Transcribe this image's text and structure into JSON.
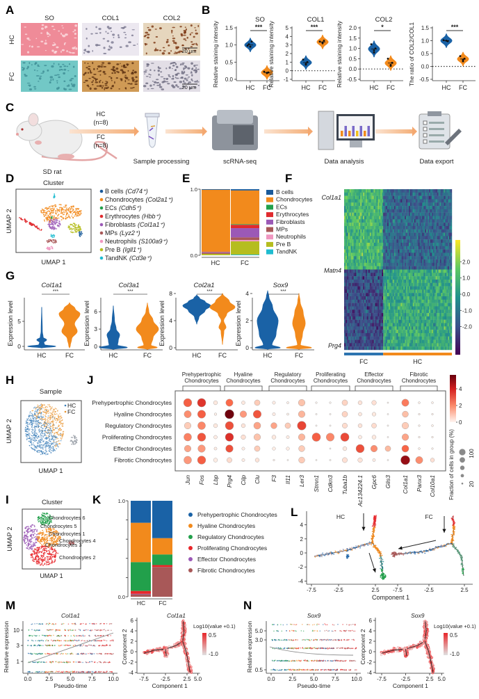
{
  "A": {
    "label": "A",
    "columns": [
      "SO",
      "COL1",
      "COL2"
    ],
    "rows": [
      "HC",
      "FC"
    ],
    "scale_bar": "20 µm"
  },
  "B": {
    "label": "B",
    "groups": [
      "HC",
      "FC"
    ],
    "colors": {
      "HC": "#1a62a6",
      "FC": "#f28a1c"
    },
    "plots": [
      {
        "title": "SO",
        "ylabel": "Relative staining intensity",
        "yticks": [
          "0.0",
          "0.5",
          "1.0",
          "1.5"
        ],
        "ylim": [
          0,
          1.5
        ],
        "sig": "***",
        "HC": [
          0.95,
          1.1,
          0.98,
          0.95,
          1.02
        ],
        "FC": [
          0.18,
          0.2,
          0.22,
          0.19
        ]
      },
      {
        "title": "COL1",
        "ylabel": "Relative staining intensity",
        "yticks": [
          "-1",
          "0",
          "1",
          "2",
          "3",
          "4",
          "5"
        ],
        "ylim": [
          -1,
          5
        ],
        "sig": "***",
        "HC": [
          0.8,
          1.0,
          1.3,
          0.7
        ],
        "FC": [
          3.3,
          3.5,
          3.4,
          3.2
        ]
      },
      {
        "title": "COL2",
        "ylabel": "Relative staining intensity",
        "yticks": [
          "-0.5",
          "0.0",
          "0.5",
          "1.0",
          "1.5",
          "2.0"
        ],
        "ylim": [
          -0.5,
          2.0
        ],
        "sig": "*",
        "HC": [
          0.8,
          1.0,
          1.2,
          0.9
        ],
        "FC": [
          0.2,
          0.3,
          0.5,
          0.15
        ]
      },
      {
        "title": "",
        "ylabel": "The ratio of COL2/COL1",
        "yticks": [
          "-0.5",
          "0.0",
          "0.5",
          "1.0",
          "1.5"
        ],
        "ylim": [
          -0.5,
          1.5
        ],
        "sig": "***",
        "HC": [
          1.0,
          0.98,
          1.02
        ],
        "FC": [
          0.2,
          0.3,
          0.4,
          0.25
        ]
      }
    ]
  },
  "C": {
    "label": "C",
    "subject": "SD rat",
    "groups": [
      {
        "name": "HC",
        "n": "(n=8)"
      },
      {
        "name": "FC",
        "n": "(n=8)"
      }
    ],
    "steps": [
      "Sample processing",
      "scRNA-seq",
      "Data analysis",
      "Data export"
    ]
  },
  "D": {
    "label": "D",
    "title": "Cluster",
    "xlabel": "UMAP 1",
    "ylabel": "UMAP 2",
    "legend": [
      {
        "name": "B cells",
        "marker": "(Cd74⁺)",
        "color": "#1a5a9a"
      },
      {
        "name": "Chondrocytes",
        "marker": "(Col2a1⁺)",
        "color": "#f28a1c"
      },
      {
        "name": "ECs",
        "marker": "(Cdh5⁺)",
        "color": "#22a04b"
      },
      {
        "name": "Erythrocytes",
        "marker": "(Hbb⁺)",
        "color": "#e02a2e"
      },
      {
        "name": "Fibroblasts",
        "marker": "(Col1a1⁺)",
        "color": "#9b59b6"
      },
      {
        "name": "MPs",
        "marker": "(Lyz2⁺)",
        "color": "#a85858"
      },
      {
        "name": "Neutrophils",
        "marker": "(S100a9⁺)",
        "color": "#f097c0"
      },
      {
        "name": "Pre B",
        "marker": "(Igll1⁺)",
        "color": "#b5bd1f"
      },
      {
        "name": "TandNK",
        "marker": "(Cd3e⁺)",
        "color": "#1fbcd0"
      }
    ]
  },
  "E": {
    "label": "E",
    "categories": [
      "HC",
      "FC"
    ],
    "yticks": [
      "0.0",
      "1.0"
    ],
    "legend": [
      "B cells",
      "Chondrocytes",
      "ECs",
      "Erythrocytes",
      "Fibroblasts",
      "MPs",
      "Neutrophils",
      "Pre B",
      "TandNK"
    ],
    "fractions": {
      "HC": [
        0.01,
        0.94,
        0.0,
        0.0,
        0.01,
        0.02,
        0.0,
        0.02,
        0.0
      ],
      "FC": [
        0.02,
        0.51,
        0.01,
        0.05,
        0.14,
        0.04,
        0.02,
        0.2,
        0.01
      ]
    }
  },
  "F": {
    "label": "F",
    "genes": [
      "Col1a1",
      "Matn4",
      "Prg4"
    ],
    "groups": [
      "FC",
      "HC"
    ],
    "colorbar": [
      "2.0",
      "1.0",
      "0.0",
      "-1.0",
      "-2.0"
    ]
  },
  "G": {
    "label": "G",
    "ylabel": "Expression level",
    "groups": [
      "HC",
      "FC"
    ],
    "sig": "***",
    "plots": [
      {
        "gene": "Col1a1",
        "yticks": [
          "0",
          "5"
        ],
        "HC": [
          [
            -0.3,
            0
          ],
          [
            0,
            1
          ],
          [
            0.3,
            0.2
          ],
          [
            0.8,
            0.15
          ],
          [
            1.3,
            0.35
          ],
          [
            1.8,
            0.1
          ],
          [
            3,
            0.04
          ],
          [
            7.8,
            0
          ]
        ],
        "FC": [
          [
            -0.3,
            0
          ],
          [
            0.1,
            0.05
          ],
          [
            1.5,
            0.15
          ],
          [
            3,
            0.55
          ],
          [
            4.5,
            0.35
          ],
          [
            6.5,
            0.75
          ],
          [
            7.5,
            0.4
          ],
          [
            8.7,
            0
          ]
        ]
      },
      {
        "gene": "Col3a1",
        "yticks": [
          "0",
          "3",
          "6"
        ],
        "HC": [
          [
            -0.5,
            0
          ],
          [
            -0.2,
            1
          ],
          [
            0.2,
            0.3
          ],
          [
            1,
            0.35
          ],
          [
            2,
            0.45
          ],
          [
            3,
            0.2
          ],
          [
            4.5,
            0.08
          ],
          [
            7,
            0
          ]
        ],
        "FC": [
          [
            -0.5,
            0
          ],
          [
            -0.2,
            0.7
          ],
          [
            0.2,
            0.25
          ],
          [
            1.5,
            0.4
          ],
          [
            3,
            0.8
          ],
          [
            4.5,
            0.4
          ],
          [
            6,
            0.1
          ],
          [
            7.5,
            0
          ]
        ]
      },
      {
        "gene": "Col2a1",
        "yticks": [
          "0",
          "4",
          "8"
        ],
        "HC": [
          [
            3.5,
            0
          ],
          [
            4.5,
            0.15
          ],
          [
            5.5,
            0.6
          ],
          [
            6.2,
            1
          ],
          [
            6.8,
            0.6
          ],
          [
            7.3,
            0.2
          ],
          [
            7.8,
            0
          ]
        ],
        "FC": [
          [
            0.5,
            0
          ],
          [
            2.5,
            0.1
          ],
          [
            3,
            0.25
          ],
          [
            4,
            0.08
          ],
          [
            5,
            0.3
          ],
          [
            6,
            0.9
          ],
          [
            6.8,
            0.5
          ],
          [
            8,
            0
          ]
        ]
      },
      {
        "gene": "Sox9",
        "yticks": [
          "0",
          "2",
          "4"
        ],
        "HC": [
          [
            -0.1,
            0
          ],
          [
            0,
            0.9
          ],
          [
            0.2,
            0.3
          ],
          [
            1,
            0.6
          ],
          [
            2,
            0.75
          ],
          [
            3,
            0.35
          ],
          [
            3.8,
            0.08
          ],
          [
            4.2,
            0
          ]
        ],
        "FC": [
          [
            -0.1,
            0
          ],
          [
            0,
            0.9
          ],
          [
            0.2,
            0.1
          ],
          [
            1,
            0.25
          ],
          [
            1.8,
            0.45
          ],
          [
            2.6,
            0.3
          ],
          [
            3.4,
            0.08
          ],
          [
            4,
            0
          ]
        ]
      }
    ]
  },
  "H": {
    "label": "H",
    "title": "Sample",
    "legend": [
      "HC",
      "FC"
    ],
    "xlabel": "UMAP 1",
    "ylabel": "UMAP 2"
  },
  "I": {
    "label": "I",
    "title": "Cluster",
    "xlabel": "UMAP 1",
    "ylabel": "UMAP 2",
    "clusters": [
      "Chondrocytes 6",
      "Chondrocytes 5",
      "Chondrocytes 1",
      "Chondrocytes 4",
      "Chondrocytes 3",
      "Chondrocytes 2"
    ]
  },
  "J": {
    "label": "J",
    "groups": [
      {
        "line1": "Prehypertrophic",
        "line2": "Chondrocytes"
      },
      {
        "line1": "Hyaline",
        "line2": "Chondrocytes"
      },
      {
        "line1": "Regulatory",
        "line2": "Chondrocytes"
      },
      {
        "line1": "Proliferating",
        "line2": "Chondrocytes"
      },
      {
        "line1": "Effector",
        "line2": "Chondrocytes"
      },
      {
        "line1": "Fibrotic",
        "line2": "Chondrocytes"
      }
    ],
    "rows": [
      "Prehypertrophic Chondrocytes",
      "Hyaline Chondrocytes",
      "Regulatory Chondrocytes",
      "Proliferating Chondrocytes",
      "Effector Chondrocytes",
      "Fibrotic Chondrocytes"
    ],
    "genes": [
      "Jun",
      "Fos",
      "Lbp",
      "Prg4",
      "Cilp",
      "Clu",
      "F3",
      "Il11",
      "Ler3",
      "Stmn1",
      "Cdkn3",
      "Tuba1b",
      "Ac134224.1",
      "Gpc6",
      "Glis3",
      "Col1a1",
      "Panx3",
      "Col10a1"
    ],
    "expr": [
      [
        3.0,
        3.8,
        0.3,
        2.8,
        0.3,
        1.0,
        0.2,
        0.1,
        1.2,
        0,
        0,
        0.8,
        0.4,
        0.5,
        0,
        2.5,
        0.1,
        0.1
      ],
      [
        2.2,
        3.0,
        0.1,
        5.5,
        2.0,
        3.2,
        0.2,
        0.1,
        1.5,
        0,
        0,
        0.8,
        0.3,
        0.3,
        0,
        1.3,
        0.1,
        0.1
      ],
      [
        1.0,
        2.3,
        0.3,
        3.3,
        0.4,
        1.8,
        1.8,
        1.0,
        3.5,
        0,
        0,
        0.6,
        0.4,
        0.6,
        0,
        1.0,
        0.1,
        0.1
      ],
      [
        2.4,
        3.2,
        0.2,
        3.9,
        0.5,
        1.2,
        0.3,
        0.2,
        1.5,
        3.0,
        2.3,
        3.4,
        0.2,
        0.3,
        0,
        1.8,
        0.1,
        0.1
      ],
      [
        1.8,
        2.0,
        0.2,
        3.3,
        0.2,
        1.0,
        0.2,
        0.2,
        1.0,
        0,
        0,
        0.3,
        3.3,
        2.2,
        1.4,
        2.9,
        0.1,
        0.1
      ],
      [
        2.0,
        3.0,
        0.2,
        0.6,
        0.2,
        0.4,
        0.1,
        0,
        1.0,
        0,
        0,
        0.5,
        0.4,
        0.2,
        0,
        5.0,
        2.2,
        0.5
      ]
    ],
    "frac": [
      [
        70,
        72,
        30,
        60,
        25,
        45,
        20,
        12,
        55,
        8,
        8,
        45,
        30,
        35,
        5,
        60,
        10,
        10
      ],
      [
        60,
        68,
        15,
        78,
        55,
        68,
        20,
        12,
        55,
        6,
        6,
        45,
        25,
        28,
        5,
        50,
        8,
        8
      ],
      [
        55,
        65,
        30,
        70,
        30,
        58,
        50,
        45,
        75,
        6,
        6,
        40,
        30,
        38,
        6,
        55,
        8,
        10
      ],
      [
        65,
        70,
        25,
        70,
        35,
        55,
        30,
        20,
        55,
        72,
        68,
        72,
        25,
        30,
        5,
        55,
        8,
        8
      ],
      [
        55,
        62,
        18,
        62,
        20,
        45,
        22,
        22,
        50,
        0,
        5,
        30,
        70,
        55,
        45,
        58,
        10,
        8
      ],
      [
        65,
        70,
        30,
        40,
        20,
        30,
        8,
        5,
        50,
        5,
        6,
        40,
        35,
        18,
        5,
        78,
        60,
        30
      ]
    ],
    "colorbar_ticks": [
      "0",
      "2",
      "4"
    ],
    "size_label": "Fraction of cells in group (%)",
    "size_ticks": [
      "20",
      "100"
    ]
  },
  "K": {
    "label": "K",
    "categories": [
      "HC",
      "FC"
    ],
    "yticks": [
      "0.0",
      "1.0"
    ],
    "legend": [
      "Prehypertrophic Chondrocytes",
      "Hyaline Chondrocytes",
      "Regulatory Chondrocytes",
      "Proliferating Chondrocytes",
      "Effector Chondrocytes",
      "Fibrotic Chondrocytes"
    ],
    "colors": [
      "#1a62a6",
      "#f28a1c",
      "#22a04b",
      "#e8262a",
      "#9b59b6",
      "#a85858"
    ],
    "fractions": {
      "HC": [
        0.23,
        0.41,
        0.3,
        0.03,
        0.005,
        0.025
      ],
      "FC": [
        0.39,
        0.17,
        0.11,
        0.02,
        0.0,
        0.31
      ]
    }
  },
  "L": {
    "label": "L",
    "panels": [
      "HC",
      "FC"
    ],
    "xlabel": "Component 1",
    "yticks": [
      "4",
      "2",
      "0",
      "-2",
      "-4"
    ],
    "xticks": [
      "-7.5",
      "-2.5",
      "2.5"
    ]
  },
  "M": {
    "label": "M",
    "gene": "Col1a1",
    "pseudo": {
      "xlabel": "Pseudo-time",
      "ylabel": "Relative expression",
      "yticks": [
        "10",
        "3",
        "1"
      ],
      "xticks": [
        "0.0",
        "2.5",
        "5.0",
        "7.5",
        "10.0"
      ]
    },
    "traj": {
      "xlabel": "Component 1",
      "ylabel": "Component 2",
      "yticks": [
        "6",
        "4",
        "2",
        "0",
        "-2",
        "-4"
      ],
      "xticks": [
        "-7.5",
        "-2.5",
        "2.5",
        "5.0"
      ],
      "legend_title": "Log10(value +0.1)",
      "colorbar": [
        "0.5",
        "-1.0"
      ]
    }
  },
  "N": {
    "label": "N",
    "gene": "Sox9",
    "pseudo": {
      "xlabel": "Pseudo-time",
      "ylabel": "Relative expression",
      "yticks": [
        "5.0",
        "3.0",
        "0.5"
      ],
      "xticks": [
        "0.0",
        "2.5",
        "5.0",
        "7.5",
        "10.0"
      ]
    },
    "traj": {
      "xlabel": "Component 1",
      "ylabel": "Component 2",
      "yticks": [
        "6",
        "4",
        "2",
        "0",
        "-2",
        "-4"
      ],
      "xticks": [
        "-7.5",
        "-2.5",
        "2.5",
        "5.0"
      ],
      "legend_title": "Log10(value +0.1)",
      "colorbar": [
        "0.5",
        "-1.0"
      ]
    }
  }
}
